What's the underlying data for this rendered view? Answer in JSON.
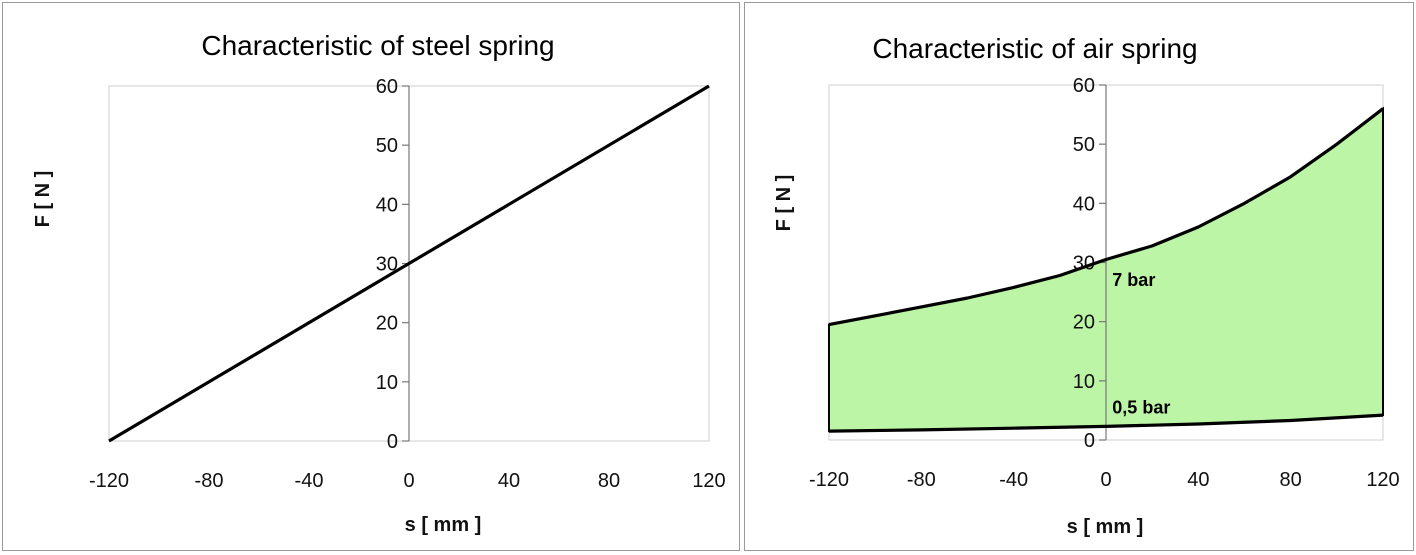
{
  "chart_data": [
    {
      "type": "line",
      "title": "Characteristic of  steel spring",
      "xlabel": "s [ mm ]",
      "ylabel": "F [ N ]",
      "xlim": [
        -120,
        120
      ],
      "ylim": [
        0,
        60
      ],
      "xticks": [
        -120,
        -80,
        -40,
        0,
        40,
        80,
        120
      ],
      "yticks": [
        0,
        10,
        20,
        30,
        40,
        50,
        60
      ],
      "grid": false,
      "series": [
        {
          "x": [
            -120,
            120
          ],
          "y": [
            0,
            60
          ],
          "color": "#000000"
        }
      ],
      "annotations": []
    },
    {
      "type": "area",
      "title": "Characteristic of  air spring",
      "xlabel": "s [ mm ]",
      "ylabel": "F [ N ]",
      "xlim": [
        -120,
        120
      ],
      "ylim": [
        0,
        60
      ],
      "xticks": [
        -120,
        -80,
        -40,
        0,
        40,
        80,
        120
      ],
      "yticks": [
        0,
        10,
        20,
        30,
        40,
        50,
        60
      ],
      "grid": false,
      "fill_color": "#bdf5a6",
      "series": [
        {
          "name": "7 bar",
          "x": [
            -120,
            -100,
            -80,
            -60,
            -40,
            -20,
            0,
            20,
            40,
            60,
            80,
            100,
            120
          ],
          "y": [
            19.5,
            21,
            22.5,
            24,
            25.8,
            27.8,
            30.5,
            32.8,
            36,
            40,
            44.5,
            50,
            56
          ],
          "color": "#000000"
        },
        {
          "name": "0,5 bar",
          "x": [
            -120,
            -80,
            -40,
            0,
            40,
            80,
            120
          ],
          "y": [
            1.5,
            1.7,
            2,
            2.3,
            2.7,
            3.3,
            4.2
          ],
          "color": "#000000"
        }
      ],
      "annotations": [
        {
          "text": "7 bar",
          "x": 1,
          "y": 26
        },
        {
          "text": "0,5 bar",
          "x": 1,
          "y": 4.5
        }
      ]
    }
  ]
}
